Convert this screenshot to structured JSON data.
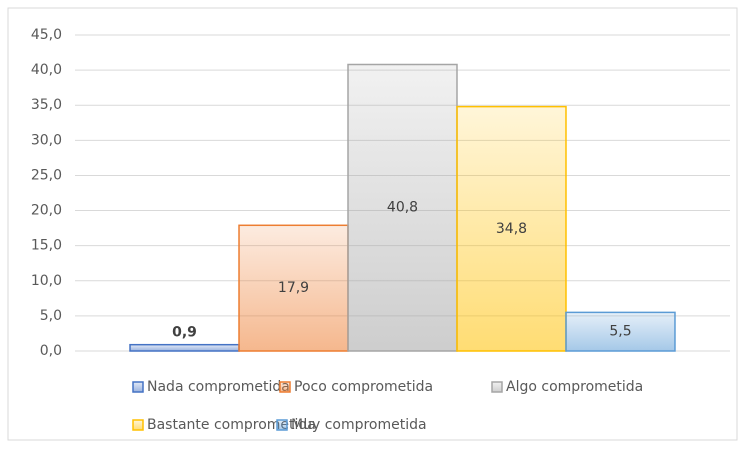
{
  "chart_data": {
    "type": "bar",
    "categories": [
      null
    ],
    "series": [
      {
        "name": "Nada comprometida",
        "color": "#4472c4",
        "values": [
          0.9
        ],
        "value_labels": [
          "0,9"
        ]
      },
      {
        "name": "Poco comprometida",
        "color": "#ed7d31",
        "values": [
          17.9
        ],
        "value_labels": [
          "17,9"
        ]
      },
      {
        "name": "Algo comprometida",
        "color": "#a5a5a5",
        "values": [
          40.8
        ],
        "value_labels": [
          "40,8"
        ]
      },
      {
        "name": "Bastante comprometida",
        "color": "#ffc000",
        "values": [
          34.8
        ],
        "value_labels": [
          "34,8"
        ]
      },
      {
        "name": "Muy comprometida",
        "color": "#5b9bd5",
        "values": [
          5.5
        ],
        "value_labels": [
          "5,5"
        ]
      }
    ],
    "ylim": [
      0,
      45
    ],
    "yticks": [
      {
        "value": 0,
        "label": "0,0"
      },
      {
        "value": 5,
        "label": "5,0"
      },
      {
        "value": 10,
        "label": "10,0"
      },
      {
        "value": 15,
        "label": "15,0"
      },
      {
        "value": 20,
        "label": "20,0"
      },
      {
        "value": 25,
        "label": "25,0"
      },
      {
        "value": 30,
        "label": "30,0"
      },
      {
        "value": 35,
        "label": "35,0"
      },
      {
        "value": 40,
        "label": "40,0"
      },
      {
        "value": 45,
        "label": "45,0"
      }
    ],
    "grid": true,
    "legend": "bottom"
  }
}
